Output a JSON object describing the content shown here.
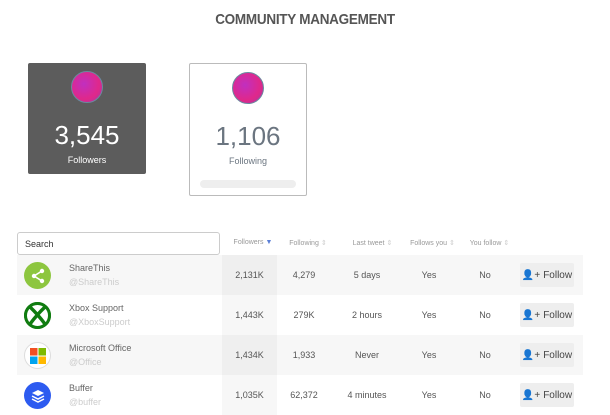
{
  "title": "COMMUNITY MANAGEMENT",
  "cards": [
    {
      "value": "3,545",
      "label": "Followers"
    },
    {
      "value": "1,106",
      "label": "Following"
    }
  ],
  "search": {
    "placeholder": "Search",
    "value": ""
  },
  "columns": [
    "Followers",
    "Following",
    "Last tweet",
    "Follows you",
    "You follow"
  ],
  "sort": {
    "column": "Followers",
    "direction": "descending"
  },
  "follow_label": "Follow",
  "rows": [
    {
      "name": "ShareThis",
      "handle": "@ShareThis",
      "followers": "2,131K",
      "following": "4,279",
      "last_tweet": "5 days",
      "follows_you": "Yes",
      "you_follow": "No",
      "icon": "share-icon",
      "color": "#8dc63f"
    },
    {
      "name": "Xbox Support",
      "handle": "@XboxSupport",
      "followers": "1,443K",
      "following": "279K",
      "last_tweet": "2 hours",
      "follows_you": "Yes",
      "you_follow": "No",
      "icon": "xbox-icon",
      "color": "#107c10"
    },
    {
      "name": "Microsoft Office",
      "handle": "@Office",
      "followers": "1,434K",
      "following": "1,933",
      "last_tweet": "Never",
      "follows_you": "Yes",
      "you_follow": "No",
      "icon": "office-icon",
      "color": "#ffffff"
    },
    {
      "name": "Buffer",
      "handle": "@buffer",
      "followers": "1,035K",
      "following": "62,372",
      "last_tweet": "4 minutes",
      "follows_you": "Yes",
      "you_follow": "No",
      "icon": "buffer-icon",
      "color": "#2d5bf0"
    }
  ]
}
